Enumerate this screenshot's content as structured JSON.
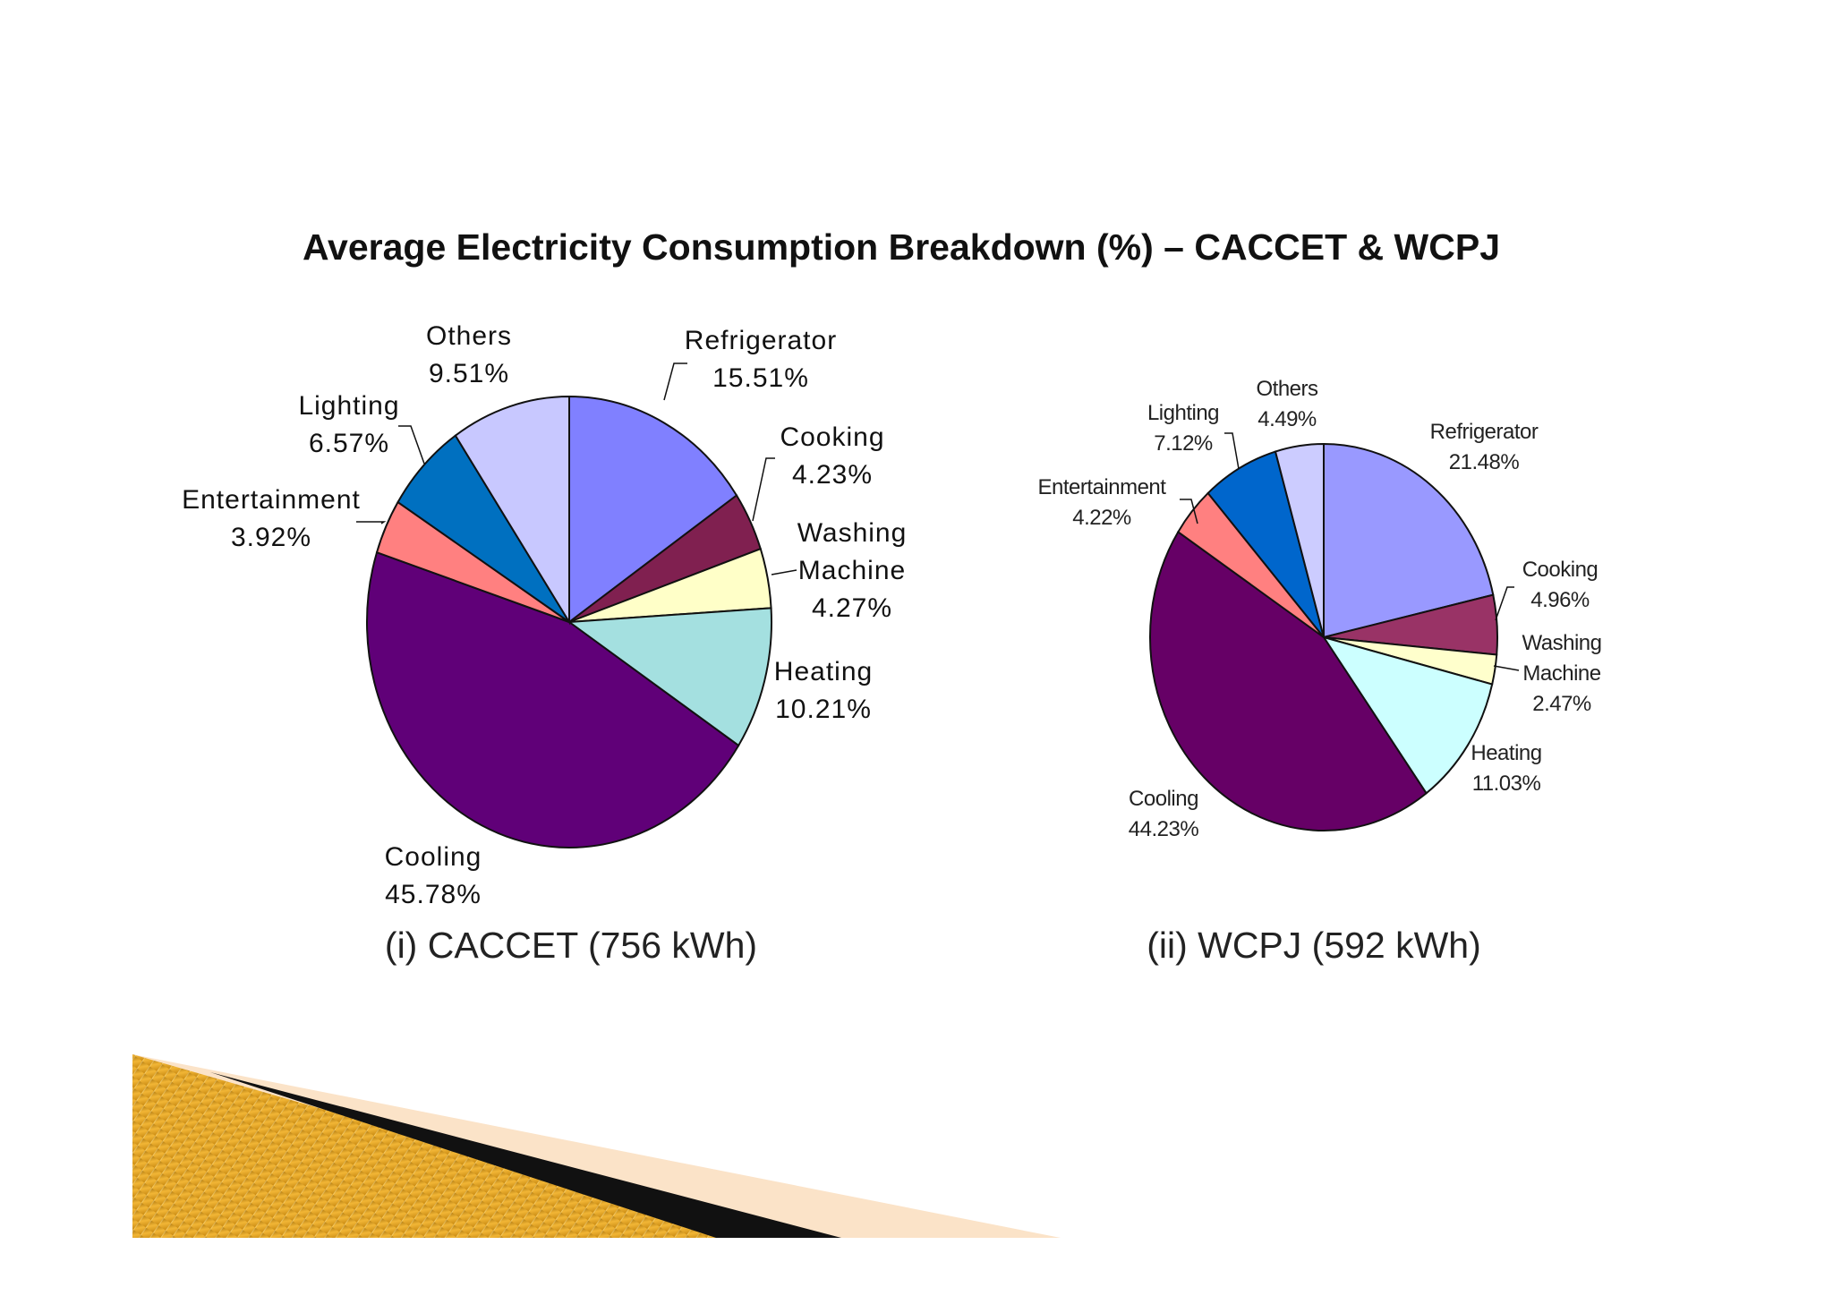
{
  "slide": {
    "title": "Average Electricity Consumption Breakdown (%) – CACCET & WCPJ"
  },
  "chart_data": [
    {
      "type": "pie",
      "caption": "(i) CACCET (756 kWh)",
      "unit": "%",
      "start_angle_deg": 0,
      "direction": "clockwise",
      "slices": [
        {
          "label": [
            "Refrigerator"
          ],
          "value": 15.51,
          "value_text": "15.51%",
          "color": "#8080ff"
        },
        {
          "label": [
            "Cooking"
          ],
          "value": 4.23,
          "value_text": "4.23%",
          "color": "#802050"
        },
        {
          "label": [
            "Washing",
            "Machine"
          ],
          "value": 4.27,
          "value_text": "4.27%",
          "color": "#ffffc8"
        },
        {
          "label": [
            "Heating"
          ],
          "value": 10.21,
          "value_text": "10.21%",
          "color": "#a4e0e0"
        },
        {
          "label": [
            "Cooling"
          ],
          "value": 45.78,
          "value_text": "45.78%",
          "color": "#600078"
        },
        {
          "label": [
            "Entertainment"
          ],
          "value": 3.92,
          "value_text": "3.92%",
          "color": "#ff8080"
        },
        {
          "label": [
            "Lighting"
          ],
          "value": 6.57,
          "value_text": "6.57%",
          "color": "#0070c0"
        },
        {
          "label": [
            "Others"
          ],
          "value": 9.51,
          "value_text": "9.51%",
          "color": "#c8c8ff"
        }
      ]
    },
    {
      "type": "pie",
      "caption": "(ii) WCPJ (592 kWh)",
      "unit": "%",
      "start_angle_deg": 0,
      "direction": "clockwise",
      "slices": [
        {
          "label": [
            "Refrigerator"
          ],
          "value": 21.48,
          "value_text": "21.48%",
          "color": "#9999ff"
        },
        {
          "label": [
            "Cooking"
          ],
          "value": 4.96,
          "value_text": "4.96%",
          "color": "#993366"
        },
        {
          "label": [
            "Washing",
            "Machine"
          ],
          "value": 2.47,
          "value_text": "2.47%",
          "color": "#ffffcc"
        },
        {
          "label": [
            "Heating"
          ],
          "value": 11.03,
          "value_text": "11.03%",
          "color": "#ccffff"
        },
        {
          "label": [
            "Cooling"
          ],
          "value": 44.23,
          "value_text": "44.23%",
          "color": "#660066"
        },
        {
          "label": [
            "Entertainment"
          ],
          "value": 4.22,
          "value_text": "4.22%",
          "color": "#ff8080"
        },
        {
          "label": [
            "Lighting"
          ],
          "value": 7.12,
          "value_text": "7.12%",
          "color": "#0066cc"
        },
        {
          "label": [
            "Others"
          ],
          "value": 4.49,
          "value_text": "4.49%",
          "color": "#ccccff"
        }
      ]
    }
  ]
}
